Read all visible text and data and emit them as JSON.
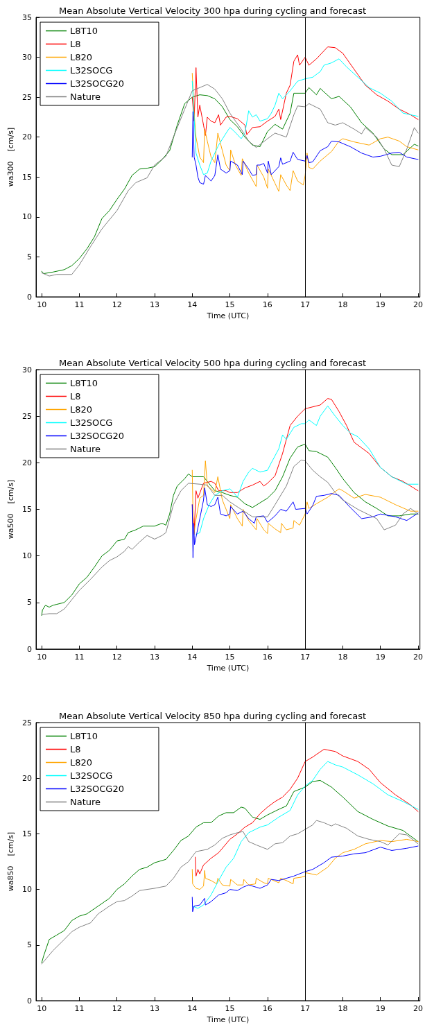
{
  "chart_data": [
    {
      "type": "line",
      "title": "Mean Absolute Vertical Velocity 300 hpa during cycling and forecast",
      "xlabel": "Time (UTC)",
      "ylabel": "wa300    [cm/s]",
      "xlim": [
        9.85,
        20.05
      ],
      "xticks": [
        10,
        11,
        12,
        13,
        14,
        15,
        16,
        17,
        18,
        19,
        20
      ],
      "ylim": [
        0,
        35
      ],
      "yticks": [
        0,
        5,
        10,
        15,
        20,
        25,
        30,
        35
      ],
      "grid": false,
      "legend": "top left",
      "marker": "none",
      "line_style": "solid",
      "ref_lines": [
        {
          "axis": "x",
          "value": 17,
          "color": "#000000"
        }
      ],
      "series": [
        {
          "name": "L8T10",
          "color": "#008000",
          "x": [
            10,
            10.05,
            10.3,
            10.6,
            10.8,
            11,
            11.2,
            11.4,
            11.6,
            11.8,
            12,
            12.2,
            12.4,
            12.6,
            12.8,
            13,
            13.2,
            13.4,
            13.6,
            13.8,
            14,
            14.2,
            14.4,
            14.6,
            14.8,
            15,
            15.2,
            15.4,
            15.6,
            15.8,
            16,
            16.2,
            16.4,
            16.6,
            16.7,
            17,
            17.1,
            17.3,
            17.4,
            17.7,
            17.9,
            18.2,
            18.5,
            18.8,
            19.1,
            19.3,
            19.6,
            19.9,
            20
          ],
          "values": [
            3.2,
            2.9,
            3.1,
            3.4,
            3.9,
            4.8,
            6.0,
            7.5,
            9.8,
            10.8,
            12.2,
            13.5,
            15.2,
            16.0,
            16.1,
            16.3,
            17.2,
            18.3,
            21.5,
            24.2,
            25.0,
            25.3,
            25.2,
            24.8,
            23.8,
            22.2,
            21.3,
            20.0,
            19.0,
            18.8,
            20.7,
            21.6,
            21.0,
            23.0,
            25.5,
            25.5,
            26.2,
            25.3,
            26.1,
            24.8,
            25.1,
            23.8,
            21.8,
            20.5,
            18.5,
            17.8,
            17.8,
            19.1,
            18.9
          ]
        },
        {
          "name": "L8",
          "color": "#ff0000",
          "x": [
            14,
            14.05,
            14.1,
            14.15,
            14.2,
            14.3,
            14.35,
            14.4,
            14.5,
            14.6,
            14.7,
            14.75,
            14.9,
            15,
            15.2,
            15.4,
            15.45,
            15.6,
            15.8,
            16,
            16.2,
            16.3,
            16.35,
            16.5,
            16.6,
            16.7,
            16.8,
            16.85,
            17,
            17.1,
            17.3,
            17.6,
            17.8,
            18,
            18.3,
            18.6,
            18.9,
            19.2,
            19.5,
            19.8,
            20
          ],
          "values": [
            25,
            22,
            28.7,
            22.5,
            24,
            21.5,
            20.2,
            22.5,
            22,
            21.8,
            22.8,
            21.5,
            22.5,
            22.6,
            22.3,
            21.5,
            20.3,
            21.2,
            21.3,
            22.0,
            22.6,
            23.5,
            22.2,
            25.5,
            26.5,
            29.5,
            30.3,
            29.0,
            30.0,
            29.0,
            29.8,
            31.3,
            31.2,
            30.5,
            28.5,
            26.5,
            25.3,
            24.5,
            23.5,
            22.8,
            22.2
          ]
        },
        {
          "name": "L820",
          "color": "#ffa500",
          "x": [
            14,
            14.05,
            14.1,
            14.2,
            14.3,
            14.33,
            14.4,
            14.5,
            14.6,
            14.68,
            14.8,
            14.9,
            15,
            15.02,
            15.15,
            15.3,
            15.33,
            15.5,
            15.7,
            15.72,
            15.9,
            16,
            16.02,
            16.2,
            16.3,
            16.35,
            16.5,
            16.6,
            16.68,
            16.8,
            16.95,
            17,
            17.05,
            17.1,
            17.2,
            17.4,
            17.7,
            17.9,
            18,
            18.3,
            18.7,
            19,
            19.2,
            19.5,
            19.7,
            20
          ],
          "values": [
            28,
            23,
            20,
            17.5,
            16.8,
            21,
            19.5,
            17.5,
            16.8,
            20.5,
            18.3,
            16.5,
            15.8,
            18.4,
            16.5,
            15.2,
            17.3,
            15.5,
            13.8,
            16.5,
            15,
            13.6,
            16,
            14.2,
            13.2,
            15.3,
            14,
            13.3,
            15.8,
            14.5,
            14.0,
            15.2,
            18,
            16.2,
            16.0,
            17.0,
            18.2,
            19.5,
            19.8,
            19.4,
            19.0,
            19.8,
            20.0,
            19.5,
            18.8,
            18.4
          ]
        },
        {
          "name": "L32SOCG",
          "color": "#00ffff",
          "x": [
            14,
            14.1,
            14.2,
            14.3,
            14.4,
            14.5,
            14.7,
            14.9,
            15,
            15.1,
            15.3,
            15.4,
            15.5,
            15.6,
            15.7,
            15.8,
            16,
            16.1,
            16.2,
            16.3,
            16.4,
            16.6,
            16.8,
            17,
            17.2,
            17.4,
            17.5,
            17.7,
            17.9,
            18.1,
            18.4,
            18.7,
            19,
            19.3,
            19.6,
            20
          ],
          "values": [
            27,
            18,
            16.5,
            15.3,
            15.5,
            17.0,
            19.0,
            20.5,
            21.2,
            20.8,
            19.8,
            20.5,
            23.3,
            22.5,
            22.8,
            22.0,
            22.3,
            23.0,
            24.0,
            25.5,
            24.8,
            25.8,
            27.0,
            27.3,
            27.5,
            28.2,
            29.0,
            29.3,
            29.8,
            28.8,
            27.5,
            26.2,
            25.5,
            24.5,
            23.0,
            22.6
          ]
        },
        {
          "name": "L32SOCG20",
          "color": "#0000ff",
          "x": [
            14,
            14.02,
            14.05,
            14.1,
            14.15,
            14.2,
            14.3,
            14.35,
            14.5,
            14.6,
            14.68,
            14.75,
            14.9,
            15,
            15.02,
            15.2,
            15.33,
            15.35,
            15.5,
            15.6,
            15.7,
            15.72,
            15.8,
            15.9,
            16,
            16.02,
            16.1,
            16.3,
            16.35,
            16.4,
            16.6,
            16.68,
            16.8,
            17,
            17.05,
            17.1,
            17.2,
            17.4,
            17.6,
            17.7,
            17.9,
            18.2,
            18.5,
            18.8,
            19,
            19.3,
            19.5,
            19.7,
            20
          ],
          "values": [
            17.5,
            23.2,
            17.5,
            16.5,
            15.0,
            14.3,
            14.1,
            15.2,
            14.5,
            15.2,
            17.8,
            16.0,
            15.5,
            15.8,
            17.0,
            16.5,
            15.3,
            17,
            16.0,
            15.2,
            15.3,
            16.5,
            16.5,
            16.7,
            15.5,
            17.0,
            15.3,
            16.3,
            17.4,
            16.6,
            17.0,
            18.1,
            17.2,
            17.0,
            17.7,
            16.8,
            16.9,
            18.3,
            18.8,
            19.5,
            19.4,
            18.8,
            18.0,
            17.5,
            17.6,
            18.0,
            18.1,
            17.5,
            17.2
          ]
        },
        {
          "name": "Nature",
          "color": "#808080",
          "x": [
            10,
            10.2,
            10.4,
            10.8,
            11,
            11.3,
            11.6,
            12,
            12.3,
            12.5,
            12.8,
            13,
            13.3,
            13.5,
            13.8,
            14,
            14.2,
            14.4,
            14.6,
            14.8,
            15,
            15.3,
            15.5,
            15.7,
            16,
            16.2,
            16.5,
            16.7,
            16.8,
            17,
            17.1,
            17.4,
            17.6,
            17.8,
            18,
            18.3,
            18.5,
            18.6,
            18.9,
            19.1,
            19.3,
            19.5,
            19.7,
            19.9,
            20
          ],
          "values": [
            3.0,
            2.6,
            2.8,
            2.8,
            4.0,
            6.3,
            8.5,
            10.8,
            13.3,
            14.3,
            14.9,
            16.5,
            17.6,
            20.0,
            23.5,
            25.8,
            26.2,
            26.6,
            26.0,
            24.8,
            23.0,
            21.0,
            19.5,
            18.7,
            19.8,
            20.5,
            20.0,
            22.8,
            23.9,
            23.8,
            24.2,
            23.5,
            21.8,
            21.5,
            21.8,
            21.0,
            20.4,
            21.2,
            20.0,
            18.5,
            16.5,
            16.3,
            18.5,
            21.2,
            20.5
          ]
        }
      ]
    },
    {
      "type": "line",
      "title": "Mean Absolute Vertical Velocity 500 hpa during cycling and forecast",
      "xlabel": "Time (UTC)",
      "ylabel": "wa500    [cm/s]",
      "xlim": [
        9.85,
        20.05
      ],
      "xticks": [
        10,
        11,
        12,
        13,
        14,
        15,
        16,
        17,
        18,
        19,
        20
      ],
      "ylim": [
        0,
        30
      ],
      "yticks": [
        0,
        5,
        10,
        15,
        20,
        25,
        30
      ],
      "grid": false,
      "legend": "top left",
      "marker": "none",
      "line_style": "solid",
      "ref_lines": [
        {
          "axis": "x",
          "value": 17,
          "color": "#000000"
        }
      ],
      "series": [
        {
          "name": "L8T10",
          "color": "#008000",
          "x": [
            10,
            10.02,
            10.1,
            10.2,
            10.3,
            10.4,
            10.6,
            10.8,
            11,
            11.2,
            11.4,
            11.6,
            11.8,
            12,
            12.2,
            12.3,
            12.5,
            12.7,
            13,
            13.2,
            13.3,
            13.4,
            13.5,
            13.6,
            13.8,
            13.9,
            14,
            14.3,
            14.4,
            14.6,
            14.8,
            15,
            15.2,
            15.4,
            15.6,
            15.8,
            16,
            16.2,
            16.4,
            16.6,
            16.8,
            17,
            17.1,
            17.3,
            17.6,
            17.8,
            18,
            18.3,
            18.6,
            18.9,
            19.2,
            19.5,
            19.8,
            20
          ],
          "values": [
            3.6,
            4.2,
            4.7,
            4.5,
            4.7,
            4.8,
            5.0,
            5.8,
            7.0,
            7.7,
            8.8,
            10.0,
            10.6,
            11.6,
            11.8,
            12.5,
            12.8,
            13.2,
            13.2,
            13.5,
            13.3,
            14.5,
            16.5,
            17.5,
            18.3,
            18.8,
            18.5,
            18.5,
            18.0,
            17.0,
            16.8,
            16.5,
            16.3,
            15.6,
            15.2,
            15.7,
            16.2,
            17.0,
            18.5,
            20.5,
            21.7,
            22.0,
            21.3,
            21.2,
            20.6,
            19.5,
            18.3,
            16.8,
            15.8,
            15.1,
            14.3,
            14.3,
            14.5,
            14.5
          ]
        },
        {
          "name": "L8",
          "color": "#ff0000",
          "x": [
            14,
            14.05,
            14.1,
            14.15,
            14.3,
            14.5,
            14.6,
            14.7,
            14.9,
            15,
            15.2,
            15.4,
            15.6,
            15.8,
            15.9,
            16,
            16.2,
            16.4,
            16.6,
            16.8,
            17,
            17.2,
            17.4,
            17.6,
            17.7,
            17.9,
            18.1,
            18.3,
            18.5,
            18.7,
            19,
            19.3,
            19.6,
            20
          ],
          "values": [
            15.5,
            12.5,
            17.0,
            16.2,
            17.8,
            18.0,
            17.8,
            17.0,
            17.0,
            16.8,
            16.8,
            17.3,
            17.6,
            18.0,
            17.5,
            17.8,
            18.6,
            21.0,
            24.0,
            25.0,
            25.8,
            26.0,
            26.2,
            26.9,
            26.8,
            25.5,
            24.0,
            22.2,
            21.6,
            21.0,
            19.5,
            18.5,
            18.0,
            17.0
          ]
        },
        {
          "name": "L820",
          "color": "#ffa500",
          "x": [
            14,
            14.02,
            14.05,
            14.08,
            14.2,
            14.3,
            14.35,
            14.4,
            14.5,
            14.6,
            14.68,
            14.8,
            15,
            15.02,
            15.2,
            15.33,
            15.35,
            15.5,
            15.7,
            15.72,
            15.9,
            16,
            16.02,
            16.2,
            16.35,
            16.37,
            16.5,
            16.68,
            16.7,
            16.85,
            17,
            17.05,
            17.1,
            17.3,
            17.6,
            17.9,
            18,
            18.3,
            18.6,
            19,
            19.4,
            19.8,
            20
          ],
          "values": [
            19.2,
            14.5,
            12.3,
            13.5,
            16.2,
            16.5,
            20.2,
            17.5,
            17.2,
            16.8,
            18.5,
            16.0,
            14.0,
            15.5,
            14.0,
            13.2,
            15.0,
            13.8,
            12.8,
            14.0,
            12.8,
            12.4,
            13.5,
            12.9,
            12.5,
            13.5,
            12.8,
            13.0,
            13.8,
            13.3,
            14.5,
            15.8,
            15.1,
            15.6,
            16.3,
            17.2,
            17.0,
            16.2,
            16.6,
            16.3,
            15.5,
            14.8,
            14.8
          ]
        },
        {
          "name": "L32SOCG",
          "color": "#00ffff",
          "x": [
            14.1,
            14.2,
            14.3,
            14.45,
            14.6,
            14.8,
            15,
            15.1,
            15.2,
            15.35,
            15.5,
            15.6,
            15.8,
            16,
            16.1,
            16.3,
            16.4,
            16.5,
            16.7,
            16.9,
            17,
            17.1,
            17.3,
            17.4,
            17.6,
            17.8,
            18,
            18.2,
            18.4,
            18.7,
            19,
            19.3,
            19.7,
            20
          ],
          "values": [
            12.3,
            12.5,
            14.0,
            15.5,
            16.5,
            17.0,
            17.2,
            16.8,
            16.3,
            18.0,
            19.0,
            19.4,
            19.0,
            19.2,
            20.0,
            21.5,
            23.0,
            22.5,
            23.8,
            24.2,
            24.2,
            24.6,
            24.0,
            25.0,
            26.1,
            25.0,
            24.0,
            23.2,
            22.8,
            21.5,
            19.5,
            18.5,
            17.7,
            17.7
          ]
        },
        {
          "name": "L32SOCG20",
          "color": "#0000ff",
          "x": [
            14,
            14.02,
            14.04,
            14.06,
            14.1,
            14.2,
            14.3,
            14.33,
            14.4,
            14.5,
            14.6,
            14.68,
            14.75,
            14.9,
            15,
            15.02,
            15.2,
            15.35,
            15.5,
            15.65,
            15.7,
            15.9,
            16,
            16.2,
            16.35,
            16.5,
            16.68,
            16.75,
            17,
            17.05,
            17.2,
            17.3,
            17.5,
            17.7,
            17.9,
            18.2,
            18.5,
            18.8,
            19,
            19.4,
            19.7,
            20
          ],
          "values": [
            15.5,
            9.8,
            13.5,
            11.2,
            12.0,
            14.0,
            16.0,
            17.3,
            15.5,
            15.3,
            15.5,
            16.3,
            14.5,
            14.3,
            14.5,
            15.3,
            14.5,
            14.8,
            14.0,
            13.5,
            14.2,
            14.3,
            13.6,
            14.3,
            15.0,
            14.8,
            15.8,
            15.0,
            15.1,
            14.5,
            15.4,
            16.4,
            16.5,
            16.7,
            16.5,
            15.2,
            14.0,
            14.2,
            14.5,
            14.2,
            13.8,
            14.6
          ]
        },
        {
          "name": "Nature",
          "color": "#808080",
          "x": [
            10,
            10.2,
            10.4,
            10.6,
            10.8,
            11,
            11.3,
            11.6,
            11.8,
            12,
            12.2,
            12.3,
            12.4,
            12.6,
            12.8,
            13,
            13.2,
            13.3,
            13.5,
            13.7,
            13.9,
            14.2,
            14.4,
            14.6,
            14.8,
            15,
            15.3,
            15.6,
            16,
            16.2,
            16.5,
            16.7,
            16.9,
            17,
            17.2,
            17.4,
            17.6,
            17.8,
            18,
            18.2,
            18.4,
            18.6,
            18.9,
            19.1,
            19.4,
            19.6,
            19.8,
            20
          ],
          "values": [
            3.7,
            3.8,
            3.8,
            4.3,
            5.3,
            6.3,
            7.5,
            8.8,
            9.5,
            9.9,
            10.5,
            11.0,
            10.7,
            11.5,
            12.2,
            11.8,
            12.2,
            12.5,
            15.5,
            17.0,
            17.8,
            17.7,
            17.6,
            16.5,
            16.5,
            15.8,
            15.0,
            14.2,
            14.2,
            15.5,
            17.5,
            19.6,
            20.3,
            20.2,
            19.2,
            18.5,
            17.9,
            16.8,
            16.0,
            15.5,
            15.0,
            14.6,
            14.0,
            12.8,
            13.3,
            14.5,
            15.1,
            14.5
          ]
        }
      ]
    },
    {
      "type": "line",
      "title": "Mean Absolute Vertical Velocity 850 hpa during cycling and forecast",
      "xlabel": "Time (UTC)",
      "ylabel": "wa850    [cm/s]",
      "xlim": [
        9.85,
        20.05
      ],
      "xticks": [
        10,
        11,
        12,
        13,
        14,
        15,
        16,
        17,
        18,
        19,
        20
      ],
      "ylim": [
        0,
        25
      ],
      "yticks": [
        0,
        5,
        10,
        15,
        20,
        25
      ],
      "grid": false,
      "legend": "top left",
      "marker": "none",
      "line_style": "solid",
      "ref_lines": [
        {
          "axis": "x",
          "value": 17,
          "color": "#000000"
        }
      ],
      "series": [
        {
          "name": "L8T10",
          "color": "#008000",
          "x": [
            10,
            10.05,
            10.2,
            10.4,
            10.6,
            10.8,
            11,
            11.2,
            11.5,
            11.8,
            12,
            12.2,
            12.4,
            12.6,
            12.8,
            13,
            13.3,
            13.5,
            13.7,
            13.9,
            14.1,
            14.3,
            14.5,
            14.7,
            14.9,
            15.1,
            15.3,
            15.4,
            15.6,
            15.8,
            16,
            16.3,
            16.5,
            16.7,
            17,
            17.2,
            17.4,
            17.7,
            18,
            18.4,
            18.8,
            19.2,
            19.6,
            20
          ],
          "values": [
            3.4,
            4.0,
            5.5,
            5.9,
            6.3,
            7.2,
            7.6,
            7.8,
            8.5,
            9.2,
            10.0,
            10.5,
            11.2,
            11.8,
            12.0,
            12.4,
            12.7,
            13.5,
            14.4,
            14.8,
            15.6,
            16.0,
            16.0,
            16.6,
            16.9,
            16.9,
            17.4,
            17.3,
            16.5,
            16.3,
            16.7,
            17.2,
            17.5,
            18.8,
            19.2,
            19.7,
            19.8,
            19.2,
            18.3,
            17.0,
            16.3,
            15.7,
            15.3,
            14.3
          ]
        },
        {
          "name": "L8",
          "color": "#ff0000",
          "x": [
            14.08,
            14.1,
            14.15,
            14.2,
            14.3,
            14.5,
            14.7,
            15,
            15.2,
            15.4,
            15.6,
            15.8,
            16,
            16.2,
            16.4,
            16.6,
            16.8,
            17,
            17.2,
            17.5,
            17.8,
            18,
            18.4,
            18.7,
            19,
            19.4,
            19.8,
            20
          ],
          "values": [
            12.9,
            11.2,
            11.8,
            11.4,
            12.2,
            12.8,
            13.3,
            14.5,
            15.0,
            15.6,
            16.0,
            16.8,
            17.4,
            17.9,
            18.3,
            19.0,
            20.0,
            21.5,
            21.9,
            22.6,
            22.4,
            22.0,
            21.5,
            20.8,
            19.6,
            18.5,
            17.6,
            17.0
          ]
        },
        {
          "name": "L820",
          "color": "#ffa500",
          "x": [
            14,
            14.01,
            14.05,
            14.1,
            14.2,
            14.3,
            14.33,
            14.35,
            14.5,
            14.65,
            14.68,
            14.8,
            15,
            15.02,
            15.2,
            15.35,
            15.37,
            15.5,
            15.68,
            15.7,
            15.9,
            16,
            16.02,
            16.3,
            16.35,
            16.5,
            16.68,
            16.7,
            16.9,
            17,
            17.02,
            17.3,
            17.6,
            17.8,
            18,
            18.3,
            18.6,
            19,
            19.3,
            19.7,
            20
          ],
          "values": [
            11.8,
            10.5,
            10.3,
            10.1,
            10.0,
            10.3,
            11.7,
            11.0,
            10.8,
            10.5,
            11.0,
            10.4,
            10.3,
            10.9,
            10.4,
            10.4,
            10.9,
            10.4,
            10.5,
            11.0,
            10.6,
            10.5,
            11.0,
            10.6,
            11.0,
            10.8,
            10.5,
            11.0,
            11.1,
            11.2,
            11.5,
            11.3,
            12.0,
            12.8,
            13.3,
            13.6,
            14.1,
            14.4,
            14.3,
            14.5,
            14.3
          ]
        },
        {
          "name": "L32SOCG",
          "color": "#00ffff",
          "x": [
            14,
            14.15,
            14.3,
            14.5,
            14.7,
            14.9,
            15.1,
            15.3,
            15.5,
            15.8,
            16,
            16.3,
            16.6,
            16.8,
            17,
            17.2,
            17.4,
            17.6,
            17.8,
            18,
            18.4,
            18.8,
            19.2,
            19.6,
            20
          ],
          "values": [
            8.5,
            8.3,
            8.6,
            9.5,
            10.8,
            12.0,
            12.8,
            14.3,
            15.1,
            15.6,
            15.8,
            16.5,
            17.1,
            18.5,
            19.3,
            19.8,
            20.8,
            21.5,
            21.2,
            21.0,
            20.3,
            19.5,
            18.5,
            17.9,
            17.2
          ]
        },
        {
          "name": "L32SOCG20",
          "color": "#0000ff",
          "x": [
            14,
            14.01,
            14.05,
            14.2,
            14.33,
            14.35,
            14.5,
            14.7,
            14.9,
            15,
            15.2,
            15.35,
            15.5,
            15.7,
            15.8,
            16,
            16.1,
            16.3,
            16.5,
            16.7,
            17,
            17.2,
            17.5,
            17.7,
            18,
            18.3,
            18.6,
            19,
            19.3,
            19.7,
            20
          ],
          "values": [
            9.3,
            8.0,
            8.5,
            8.6,
            9.2,
            8.6,
            8.9,
            9.5,
            9.7,
            10.0,
            9.9,
            10.2,
            10.4,
            10.2,
            10.1,
            10.4,
            10.9,
            10.8,
            11.0,
            11.2,
            11.6,
            11.8,
            12.4,
            12.9,
            13.0,
            13.2,
            13.3,
            13.8,
            13.5,
            13.7,
            13.9
          ]
        },
        {
          "name": "Nature",
          "color": "#808080",
          "x": [
            10,
            10.3,
            10.6,
            10.8,
            11,
            11.3,
            11.5,
            11.8,
            12,
            12.2,
            12.4,
            12.6,
            13,
            13.3,
            13.5,
            13.7,
            13.9,
            14.1,
            14.4,
            14.6,
            14.8,
            15,
            15.2,
            15.35,
            15.5,
            15.7,
            16,
            16.2,
            16.4,
            16.6,
            16.8,
            17,
            17.2,
            17.3,
            17.5,
            17.7,
            17.8,
            18.1,
            18.4,
            18.7,
            19,
            19.2,
            19.5,
            19.7,
            20
          ],
          "values": [
            3.3,
            4.5,
            5.5,
            6.2,
            6.6,
            7.0,
            7.8,
            8.5,
            8.9,
            9.0,
            9.4,
            9.9,
            10.1,
            10.3,
            11.0,
            12.0,
            12.5,
            13.4,
            13.6,
            14.0,
            14.6,
            14.9,
            15.1,
            15.2,
            14.3,
            14.0,
            13.6,
            14.1,
            14.2,
            14.8,
            15.0,
            15.4,
            15.8,
            16.2,
            16.0,
            15.7,
            15.9,
            15.5,
            14.8,
            14.5,
            14.3,
            14.0,
            15.0,
            14.9,
            14.1
          ]
        }
      ]
    }
  ]
}
